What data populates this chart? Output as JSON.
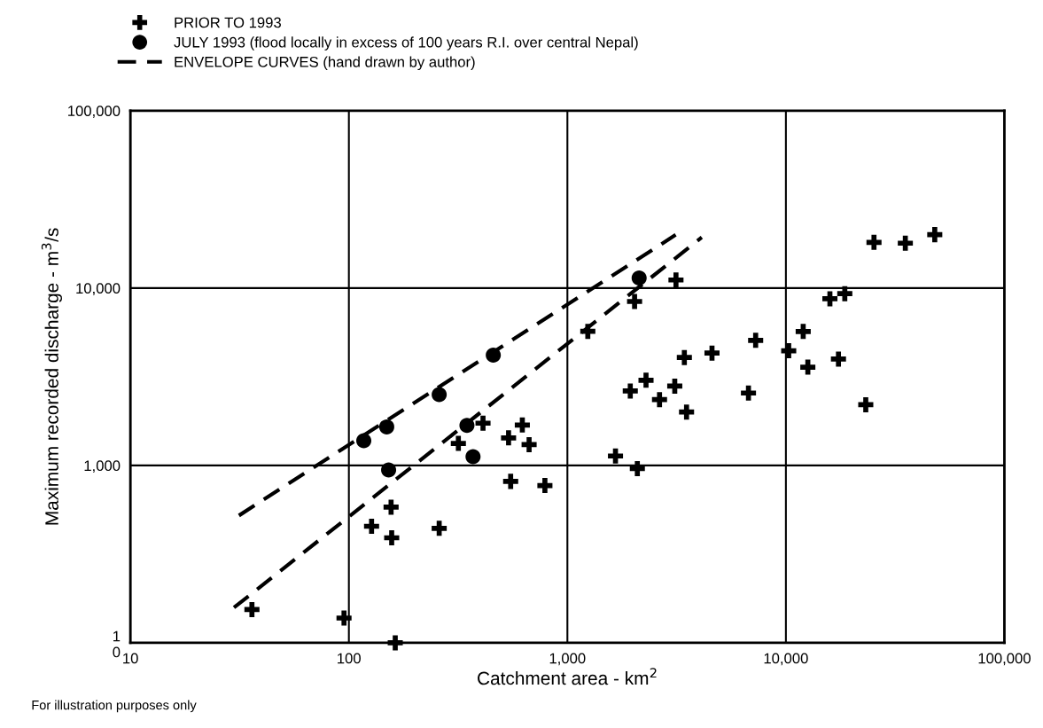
{
  "chart_data": {
    "type": "scatter",
    "xlabel": "Catchment area - km$^{2}$",
    "ylabel": "Maximum recorded discharge - m$^{3}$/s",
    "annotations": [
      "For illustration purposes only"
    ],
    "log": "xy",
    "grid": true,
    "legend": "top",
    "xlim": [
      10,
      100000
    ],
    "xticks": [
      {
        "value": 10,
        "label": "10"
      },
      {
        "value": 100,
        "label": "100"
      },
      {
        "value": 1000,
        "label": "1,000"
      },
      {
        "value": 10000,
        "label": "10,000"
      },
      {
        "value": 100000,
        "label": "100,000"
      }
    ],
    "ylim": [
      100,
      100000
    ],
    "yticks": [
      {
        "value": 100,
        "label": "1\n0"
      },
      {
        "value": 1000,
        "label": "1,000"
      },
      {
        "value": 10000,
        "label": "10,000"
      },
      {
        "value": 100000,
        "label": "100,000"
      }
    ],
    "series": [
      {
        "name": "PRIOR TO 1993",
        "marker": "cross",
        "color": "#000000",
        "x": [
          36,
          95,
          163,
          127,
          156,
          157,
          259,
          550,
          3140,
          2030,
          1240,
          411,
          317,
          538,
          622,
          668,
          789,
          1660,
          2090,
          1940,
          2290,
          2640,
          3100,
          3510,
          3430,
          4590,
          7270,
          6740,
          10300,
          12000,
          12600,
          17400,
          23200,
          15900,
          18600,
          25300,
          35200,
          48000
        ],
        "values": [
          154,
          138,
          100,
          454,
          582,
          391,
          442,
          813,
          11100,
          8400,
          5700,
          1730,
          1330,
          1430,
          1690,
          1310,
          770,
          1130,
          960,
          2630,
          3020,
          2350,
          2800,
          2000,
          4060,
          4300,
          5070,
          2560,
          4430,
          5690,
          3580,
          3980,
          2200,
          8700,
          9300,
          18100,
          17900,
          20000
        ]
      },
      {
        "name": "JULY 1993 (flood locally in excess of 100 years R.I. over central Nepal)",
        "marker": "circle",
        "color": "#000000",
        "x": [
          117,
          149,
          259,
          458,
          347,
          370,
          152,
          2130
        ],
        "values": [
          1380,
          1650,
          2510,
          4190,
          1680,
          1120,
          944,
          11400
        ]
      },
      {
        "name": "ENVELOPE CURVES (hand drawn by author)",
        "type": "line",
        "line_style": "dashed",
        "marker": "none",
        "color": "#000000",
        "x": [
          31.4,
          3130
        ],
        "values": [
          522,
          19950
        ]
      },
      {
        "type": "line",
        "line_style": "dashed",
        "marker": "none",
        "color": "#000000",
        "x": [
          29.8,
          4120
        ],
        "values": [
          158,
          19300
        ]
      }
    ]
  }
}
